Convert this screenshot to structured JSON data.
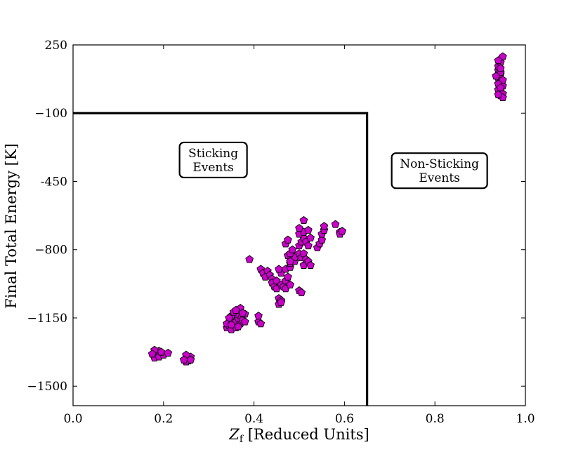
{
  "chart_data": {
    "type": "scatter",
    "title": "",
    "xlabel_main": "Z",
    "xlabel_sub": "f",
    "xlabel_rest": " [Reduced Units]",
    "ylabel": "Final Total Energy [K]",
    "xlim": [
      0.0,
      1.0
    ],
    "ylim": [
      -1600,
      250
    ],
    "xticks": [
      {
        "value": 0.0,
        "label": "0.0"
      },
      {
        "value": 0.2,
        "label": "0.2"
      },
      {
        "value": 0.4,
        "label": "0.4"
      },
      {
        "value": 0.6,
        "label": "0.6"
      },
      {
        "value": 0.8,
        "label": "0.8"
      },
      {
        "value": 1.0,
        "label": "1.0"
      }
    ],
    "yticks": [
      {
        "value": 250,
        "label": "250"
      },
      {
        "value": -100,
        "label": "−100"
      },
      {
        "value": -450,
        "label": "-450"
      },
      {
        "value": -800,
        "label": "−800"
      },
      {
        "value": -1150,
        "label": "−1150"
      },
      {
        "value": -1500,
        "label": "−1500"
      }
    ],
    "grid": false,
    "marker": "pentagon",
    "marker_color": "#cc00cc",
    "marker_edge_color": "#000000",
    "boundary_line": {
      "x": 0.65,
      "y": -100,
      "color": "#000000"
    },
    "annotations": [
      {
        "id": "sticking",
        "lines": [
          "Sticking",
          "Events"
        ],
        "x": 0.31,
        "y": -340
      },
      {
        "id": "non-sticking",
        "lines": [
          "Non-Sticking",
          " Events"
        ],
        "x": 0.81,
        "y": -395
      }
    ],
    "points": [
      [
        0.18,
        -1330
      ],
      [
        0.185,
        -1345
      ],
      [
        0.19,
        -1320
      ],
      [
        0.18,
        -1355
      ],
      [
        0.19,
        -1350
      ],
      [
        0.2,
        -1340
      ],
      [
        0.195,
        -1325
      ],
      [
        0.21,
        -1330
      ],
      [
        0.18,
        -1315
      ],
      [
        0.175,
        -1335
      ],
      [
        0.25,
        -1360
      ],
      [
        0.255,
        -1370
      ],
      [
        0.25,
        -1375
      ],
      [
        0.26,
        -1350
      ],
      [
        0.25,
        -1340
      ],
      [
        0.26,
        -1365
      ],
      [
        0.245,
        -1365
      ],
      [
        0.34,
        -1200
      ],
      [
        0.345,
        -1190
      ],
      [
        0.35,
        -1210
      ],
      [
        0.355,
        -1180
      ],
      [
        0.36,
        -1200
      ],
      [
        0.35,
        -1160
      ],
      [
        0.36,
        -1170
      ],
      [
        0.37,
        -1180
      ],
      [
        0.365,
        -1150
      ],
      [
        0.37,
        -1140
      ],
      [
        0.375,
        -1160
      ],
      [
        0.38,
        -1170
      ],
      [
        0.38,
        -1130
      ],
      [
        0.37,
        -1100
      ],
      [
        0.36,
        -1130
      ],
      [
        0.35,
        -1140
      ],
      [
        0.345,
        -1150
      ],
      [
        0.355,
        -1120
      ],
      [
        0.36,
        -1110
      ],
      [
        0.375,
        -1125
      ],
      [
        0.34,
        -1180
      ],
      [
        0.35,
        -1185
      ],
      [
        0.365,
        -1195
      ],
      [
        0.41,
        -1170
      ],
      [
        0.415,
        -1180
      ],
      [
        0.41,
        -1140
      ],
      [
        0.39,
        -850
      ],
      [
        0.415,
        -900
      ],
      [
        0.42,
        -920
      ],
      [
        0.43,
        -910
      ],
      [
        0.425,
        -940
      ],
      [
        0.435,
        -930
      ],
      [
        0.44,
        -950
      ],
      [
        0.44,
        -970
      ],
      [
        0.445,
        -990
      ],
      [
        0.45,
        -1000
      ],
      [
        0.455,
        -1050
      ],
      [
        0.46,
        -1060
      ],
      [
        0.455,
        -1080
      ],
      [
        0.46,
        -1070
      ],
      [
        0.45,
        -960
      ],
      [
        0.46,
        -980
      ],
      [
        0.465,
        -990
      ],
      [
        0.47,
        -1000
      ],
      [
        0.47,
        -960
      ],
      [
        0.475,
        -940
      ],
      [
        0.48,
        -980
      ],
      [
        0.46,
        -920
      ],
      [
        0.455,
        -900
      ],
      [
        0.47,
        -900
      ],
      [
        0.48,
        -890
      ],
      [
        0.48,
        -870
      ],
      [
        0.49,
        -860
      ],
      [
        0.49,
        -840
      ],
      [
        0.475,
        -830
      ],
      [
        0.48,
        -820
      ],
      [
        0.485,
        -800
      ],
      [
        0.5,
        -820
      ],
      [
        0.505,
        -840
      ],
      [
        0.51,
        -880
      ],
      [
        0.5,
        -1010
      ],
      [
        0.505,
        -1020
      ],
      [
        0.5,
        -780
      ],
      [
        0.505,
        -760
      ],
      [
        0.51,
        -740
      ],
      [
        0.515,
        -760
      ],
      [
        0.5,
        -720
      ],
      [
        0.51,
        -710
      ],
      [
        0.5,
        -690
      ],
      [
        0.51,
        -650
      ],
      [
        0.52,
        -700
      ],
      [
        0.525,
        -740
      ],
      [
        0.52,
        -780
      ],
      [
        0.51,
        -820
      ],
      [
        0.515,
        -850
      ],
      [
        0.52,
        -860
      ],
      [
        0.525,
        -880
      ],
      [
        0.47,
        -770
      ],
      [
        0.475,
        -750
      ],
      [
        0.48,
        -860
      ],
      [
        0.54,
        -790
      ],
      [
        0.545,
        -770
      ],
      [
        0.55,
        -750
      ],
      [
        0.55,
        -720
      ],
      [
        0.555,
        -700
      ],
      [
        0.555,
        -680
      ],
      [
        0.58,
        -670
      ],
      [
        0.59,
        -710
      ],
      [
        0.59,
        -720
      ],
      [
        0.595,
        -705
      ],
      [
        0.94,
        80
      ],
      [
        0.945,
        100
      ],
      [
        0.94,
        120
      ],
      [
        0.945,
        60
      ],
      [
        0.95,
        40
      ],
      [
        0.94,
        20
      ],
      [
        0.945,
        -10
      ],
      [
        0.95,
        0
      ],
      [
        0.94,
        140
      ],
      [
        0.945,
        160
      ],
      [
        0.95,
        190
      ],
      [
        0.94,
        170
      ],
      [
        0.945,
        110
      ],
      [
        0.95,
        70
      ],
      [
        0.935,
        90
      ],
      [
        0.94,
        50
      ],
      [
        0.945,
        30
      ],
      [
        0.95,
        -20
      ],
      [
        0.94,
        -5
      ],
      [
        0.945,
        130
      ]
    ]
  }
}
